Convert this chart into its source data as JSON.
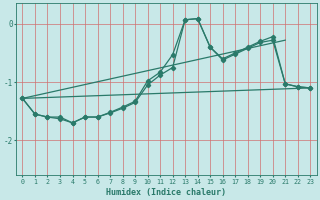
{
  "xlabel": "Humidex (Indice chaleur)",
  "bg_color": "#c8e8e8",
  "grid_color": "#d07070",
  "line_color": "#2a7a6a",
  "xlim": [
    -0.5,
    23.5
  ],
  "ylim": [
    -2.6,
    0.35
  ],
  "yticks": [
    0,
    -1,
    -2
  ],
  "xticks": [
    0,
    1,
    2,
    3,
    4,
    5,
    6,
    7,
    8,
    9,
    10,
    11,
    12,
    13,
    14,
    15,
    16,
    17,
    18,
    19,
    20,
    21,
    22,
    23
  ],
  "line1_x": [
    0,
    1,
    2,
    3,
    4,
    5,
    6,
    7,
    8,
    9,
    10,
    11,
    12,
    13,
    14,
    15,
    16,
    17,
    18,
    19,
    20,
    21,
    22,
    23
  ],
  "line1_y": [
    -1.28,
    -1.55,
    -1.6,
    -1.6,
    -1.7,
    -1.6,
    -1.6,
    -1.53,
    -1.45,
    -1.35,
    -1.05,
    -0.88,
    -0.75,
    0.07,
    0.09,
    -0.4,
    -0.62,
    -0.52,
    -0.42,
    -0.32,
    -0.28,
    -1.03,
    -1.08,
    -1.1
  ],
  "line2_x": [
    0,
    1,
    2,
    3,
    4,
    5,
    6,
    7,
    8,
    9,
    10,
    11,
    12,
    13,
    14,
    15,
    16,
    17,
    18,
    19,
    20,
    21,
    22,
    23
  ],
  "line2_y": [
    -1.28,
    -1.55,
    -1.6,
    -1.63,
    -1.7,
    -1.6,
    -1.6,
    -1.52,
    -1.43,
    -1.33,
    -0.98,
    -0.83,
    -0.53,
    0.07,
    0.09,
    -0.4,
    -0.6,
    -0.5,
    -0.4,
    -0.3,
    -0.22,
    -1.03,
    -1.08,
    -1.1
  ],
  "line3_x": [
    0,
    23
  ],
  "line3_y": [
    -1.28,
    -1.1
  ],
  "line4_x": [
    0,
    21
  ],
  "line4_y": [
    -1.28,
    -0.28
  ],
  "markersize": 2.2,
  "linewidth": 0.9
}
